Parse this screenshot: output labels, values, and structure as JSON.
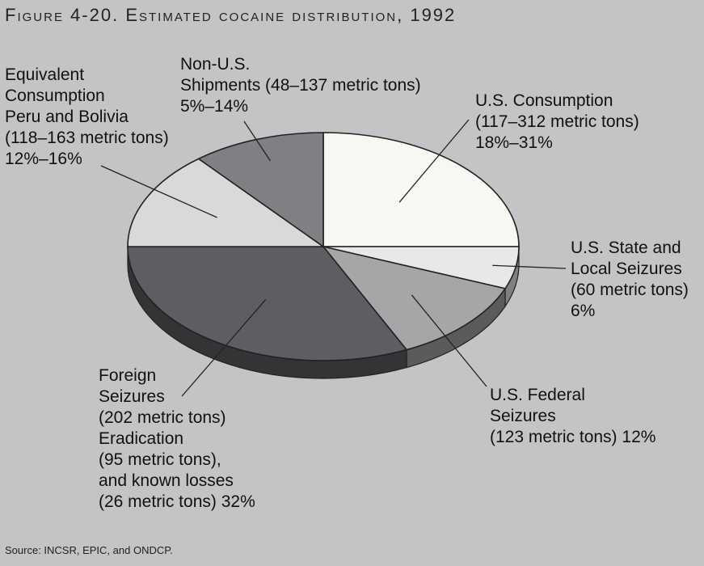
{
  "title": "Figure 4-20. Estimated cocaine distribution, 1992",
  "source": "Source: INCSR, EPIC, and ONDCP.",
  "chart_data": {
    "type": "pie",
    "title": "Figure 4-20. Estimated cocaine distribution, 1992",
    "slices": [
      {
        "name": "U.S. Consumption",
        "range": "117–312 metric tons",
        "percent_text": "18%–31%",
        "value": 25,
        "color": "#f7f7f4",
        "label_lines": [
          "U.S. Consumption",
          "(117–312 metric tons)",
          "18%–31%"
        ]
      },
      {
        "name": "U.S. State and Local Seizures",
        "range": "60 metric tons",
        "percent_text": "6%",
        "value": 6,
        "color": "#e8e8e6",
        "label_lines": [
          "U.S. State and",
          "Local Seizures",
          "(60 metric tons)",
          "6%"
        ]
      },
      {
        "name": "U.S. Federal Seizures",
        "range": "123 metric tons",
        "percent_text": "12%",
        "value": 12,
        "color": "#a5a6a8",
        "label_lines": [
          "U.S. Federal",
          "Seizures",
          "(123 metric tons) 12%"
        ]
      },
      {
        "name": "Foreign Seizures, Eradication, and known losses",
        "range": "202 + 95 + 26 metric tons",
        "percent_text": "32%",
        "value": 32,
        "color": "#5d5e61",
        "label_lines": [
          "Foreign",
          "Seizures",
          "(202 metric tons)",
          "Eradication",
          "(95 metric tons),",
          "and known losses",
          "(26 metric tons) 32%"
        ]
      },
      {
        "name": "Equivalent Consumption Peru and Bolivia",
        "range": "118–163 metric tons",
        "percent_text": "12%–16%",
        "value": 14,
        "color": "#d9dad8",
        "label_lines": [
          "Equivalent",
          "Consumption",
          "Peru and Bolivia",
          "(118–163 metric tons)",
          "12%–16%"
        ]
      },
      {
        "name": "Non-U.S. Shipments",
        "range": "48–137 metric tons",
        "percent_text": "5%–14%",
        "value": 11,
        "color": "#7f8083",
        "label_lines": [
          "Non-U.S.",
          "Shipments (48–137 metric tons)",
          "5%–14%"
        ]
      }
    ],
    "start_angle": "12 o'clock",
    "direction": "clockwise",
    "style": "3D tilted pie",
    "legend": "none (leader-line labels)"
  }
}
